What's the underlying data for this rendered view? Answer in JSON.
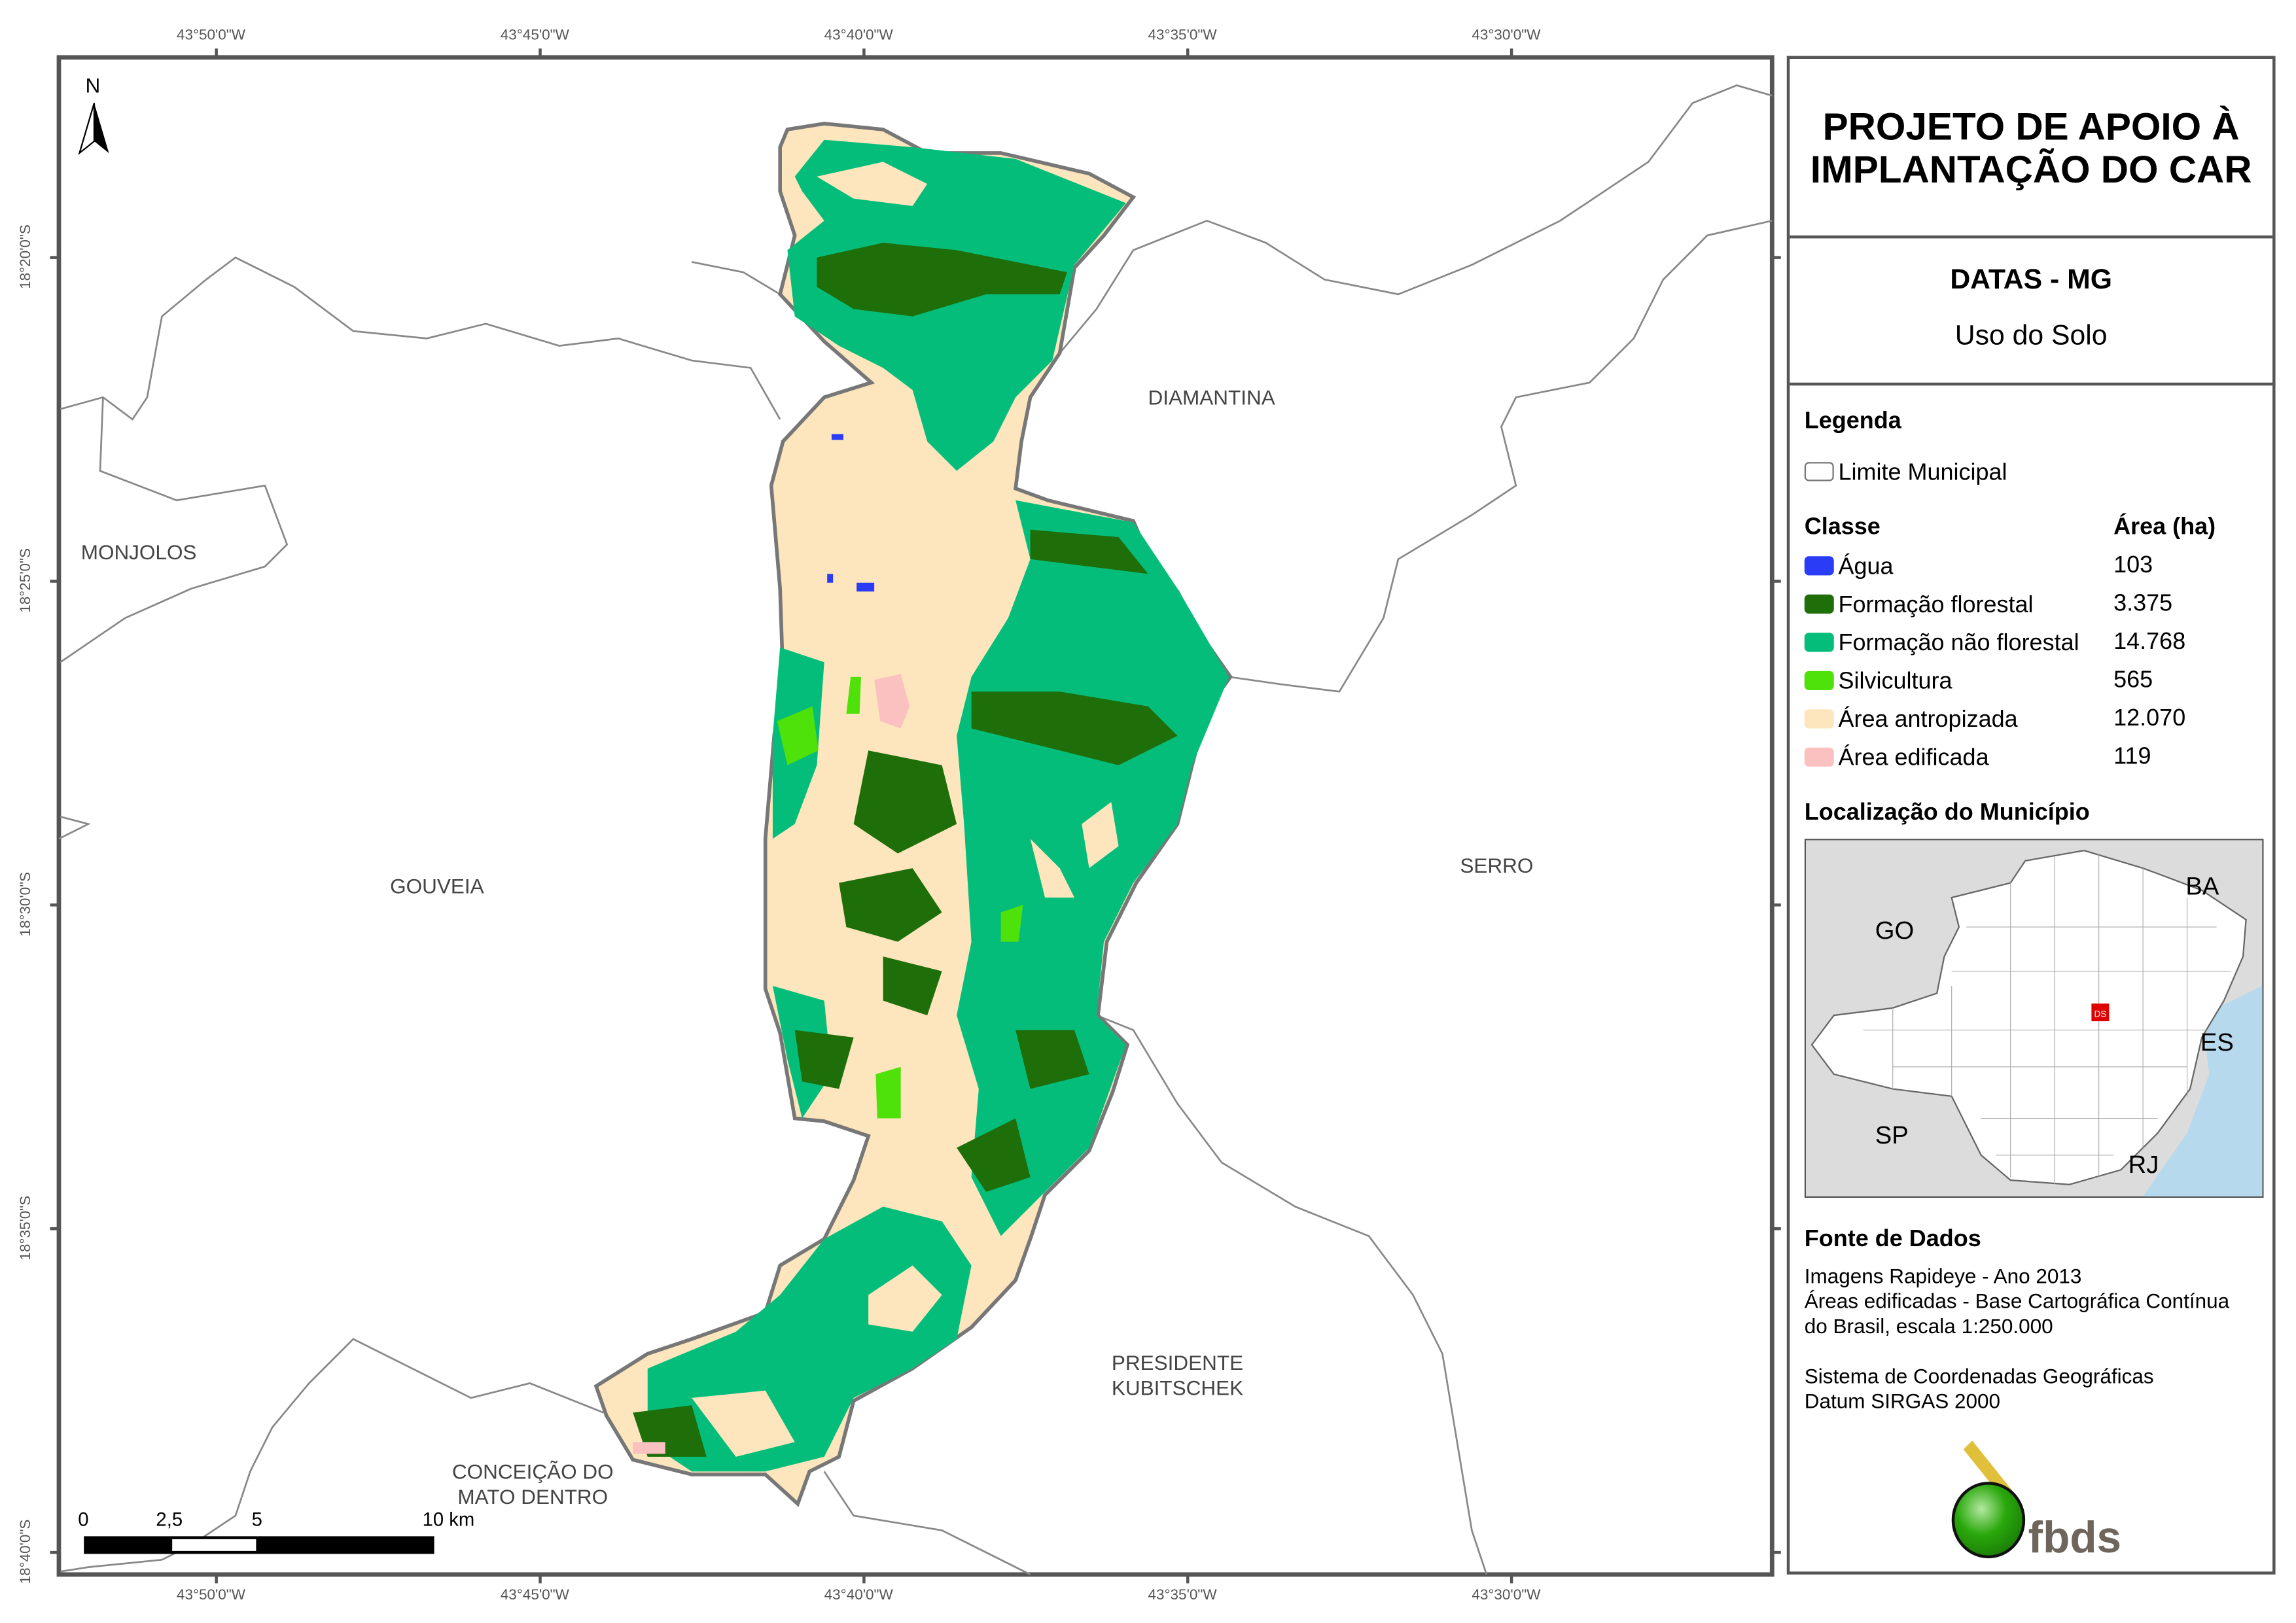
{
  "grid": {
    "lon_labels": [
      "43°50'0\"W",
      "43°45'0\"W",
      "43°40'0\"W",
      "43°35'0\"W",
      "43°30'0\"W"
    ],
    "lat_labels": [
      "18°20'0\"S",
      "18°25'0\"S",
      "18°30'0\"S",
      "18°35'0\"S",
      "18°40'0\"S"
    ]
  },
  "north_arrow": {
    "label": "N",
    "icon": "north-arrow-icon"
  },
  "places": {
    "diamantina": "DIAMANTINA",
    "monjolos": "MONJOLOS",
    "gouveia": "GOUVEIA",
    "serro": "SERRO",
    "presidente_1": "PRESIDENTE",
    "presidente_2": "KUBITSCHEK",
    "conceicao_1": "CONCEIÇÃO DO",
    "conceicao_2": "MATO DENTRO"
  },
  "scale_bar": {
    "ticks": [
      "0",
      "2,5",
      "5",
      "10 km"
    ]
  },
  "panel": {
    "title_1": "PROJETO DE APOIO À",
    "title_2": "IMPLANTAÇÃO DO CAR",
    "municipality": "DATAS - MG",
    "theme": "Uso do Solo",
    "legend_title": "Legenda",
    "boundary_label": "Limite Municipal",
    "class_header": "Classe",
    "area_header": "Área (ha)",
    "classes": [
      {
        "label": "Água",
        "area": "103",
        "color": "#2a3cf5"
      },
      {
        "label": "Formação florestal",
        "area": "3.375",
        "color": "#1e6e0a"
      },
      {
        "label": "Formação não florestal",
        "area": "14.768",
        "color": "#05bd7a"
      },
      {
        "label": "Silvicultura",
        "area": "565",
        "color": "#4fe10a"
      },
      {
        "label": "Área antropizada",
        "area": "12.070",
        "color": "#fde6bd"
      },
      {
        "label": "Área edificada",
        "area": "119",
        "color": "#fbc1c1"
      }
    ],
    "location_title": "Localização do Município",
    "inset_labels": {
      "go": "GO",
      "ba": "BA",
      "es": "ES",
      "sp": "SP",
      "rj": "RJ",
      "marker": "DS"
    },
    "sources_title": "Fonte de Dados",
    "sources": [
      "Imagens Rapideye - Ano 2013",
      "Áreas edificadas - Base Cartográfica Contínua",
      "do Brasil, escala 1:250.000",
      "",
      "Sistema de Coordenadas Geográficas",
      "Datum SIRGAS 2000"
    ],
    "logo_text": "fbds"
  }
}
